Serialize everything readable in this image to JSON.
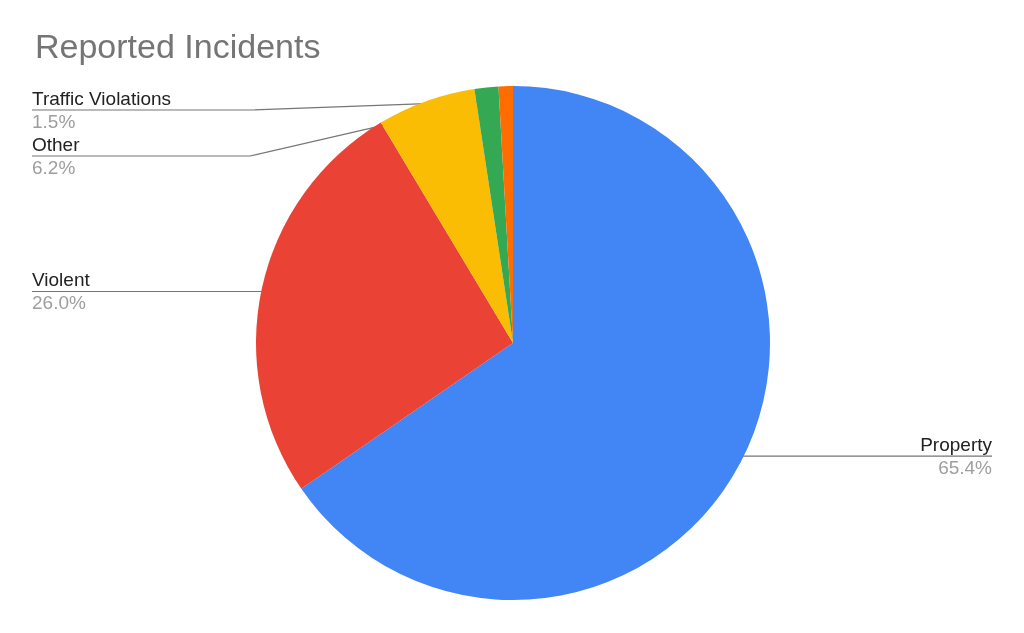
{
  "chart_data": {
    "type": "pie",
    "title": "Reported Incidents",
    "categories": [
      "Property",
      "Violent",
      "Other",
      "Traffic Violations",
      null
    ],
    "values": [
      65.4,
      26.0,
      6.2,
      1.5,
      0.9
    ],
    "colors": [
      "#4285f4",
      "#ea4335",
      "#fbbc04",
      "#34a853",
      "#ff6d01"
    ],
    "value_labels": [
      "65.4%",
      "26.0%",
      "6.2%",
      "1.5%",
      null
    ]
  }
}
